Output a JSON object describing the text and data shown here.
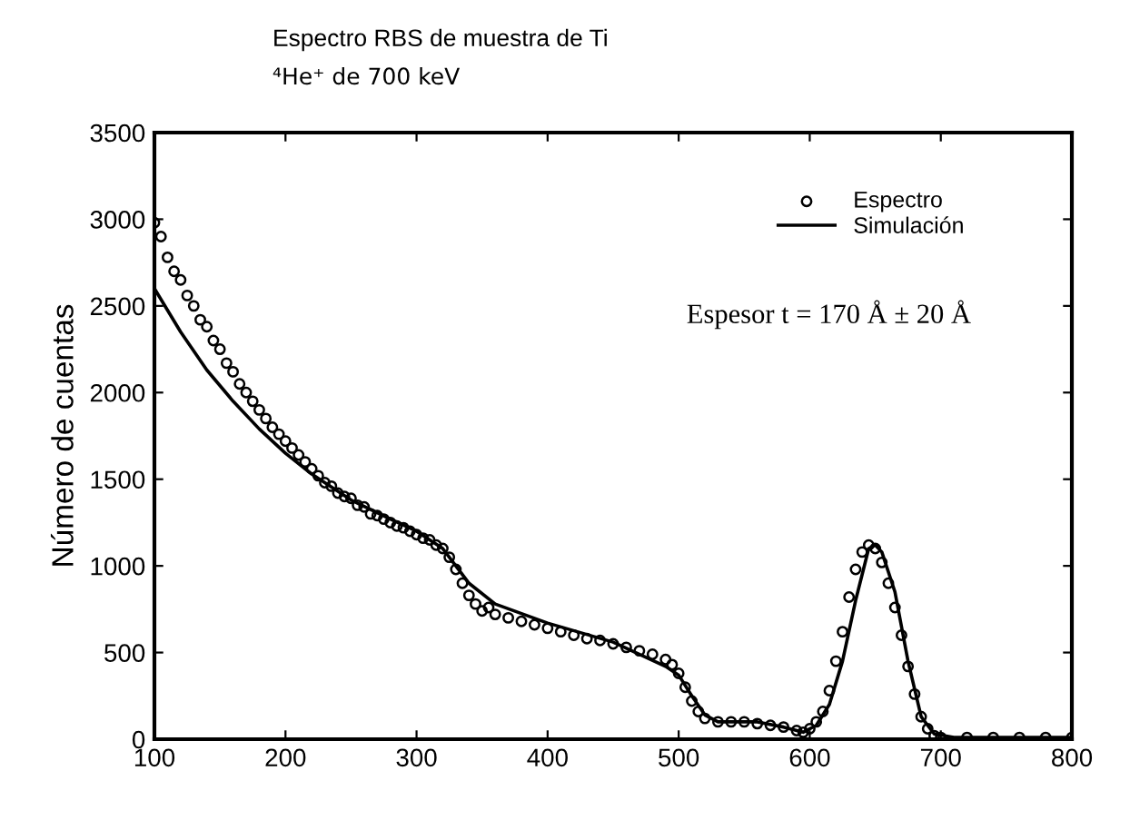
{
  "chart_data": {
    "type": "scatter",
    "title": "Espectro RBS de muestra de Ti",
    "subtitle": "⁴He⁺ de 700 keV",
    "ylabel": "Número de cuentas",
    "annotations": [
      "Espesor t = 170 Å ± 20 Å"
    ],
    "xlim": [
      100,
      800
    ],
    "xticks": [
      100,
      200,
      300,
      400,
      500,
      600,
      700,
      800
    ],
    "ylim": [
      0,
      3500
    ],
    "yticks": [
      0,
      500,
      1000,
      1500,
      2000,
      2500,
      3000,
      3500
    ],
    "grid": false,
    "legend": "top right",
    "series": [
      {
        "name": "Espectro",
        "marker": "circle",
        "color": "#000000",
        "x": [
          100,
          105,
          110,
          115,
          120,
          125,
          130,
          135,
          140,
          145,
          150,
          155,
          160,
          165,
          170,
          175,
          180,
          185,
          190,
          195,
          200,
          205,
          210,
          215,
          220,
          225,
          230,
          235,
          240,
          245,
          250,
          255,
          260,
          265,
          270,
          275,
          280,
          285,
          290,
          295,
          300,
          305,
          310,
          315,
          320,
          325,
          330,
          335,
          340,
          345,
          350,
          355,
          360,
          370,
          380,
          390,
          400,
          410,
          420,
          430,
          440,
          450,
          460,
          470,
          480,
          490,
          495,
          500,
          505,
          510,
          515,
          520,
          530,
          540,
          550,
          560,
          570,
          580,
          590,
          595,
          600,
          605,
          610,
          615,
          620,
          625,
          630,
          635,
          640,
          645,
          650,
          655,
          660,
          665,
          670,
          675,
          680,
          685,
          690,
          695,
          700,
          720,
          740,
          760,
          780,
          800
        ],
        "values": [
          2980,
          2900,
          2780,
          2700,
          2650,
          2560,
          2500,
          2420,
          2380,
          2300,
          2250,
          2170,
          2120,
          2050,
          2000,
          1950,
          1900,
          1850,
          1800,
          1760,
          1720,
          1680,
          1640,
          1600,
          1560,
          1520,
          1480,
          1460,
          1420,
          1400,
          1390,
          1350,
          1340,
          1300,
          1290,
          1270,
          1250,
          1230,
          1220,
          1200,
          1180,
          1160,
          1150,
          1120,
          1100,
          1050,
          980,
          900,
          830,
          780,
          740,
          760,
          720,
          700,
          680,
          660,
          640,
          620,
          600,
          580,
          570,
          550,
          530,
          510,
          490,
          460,
          430,
          380,
          300,
          220,
          160,
          120,
          100,
          100,
          100,
          90,
          80,
          70,
          50,
          40,
          60,
          100,
          160,
          280,
          450,
          620,
          820,
          980,
          1080,
          1120,
          1100,
          1020,
          900,
          760,
          600,
          420,
          260,
          130,
          60,
          20,
          10,
          10,
          10,
          10,
          10,
          10
        ]
      },
      {
        "name": "Simulación",
        "type": "line",
        "line_style": "solid",
        "marker": "none",
        "color": "#000000",
        "x": [
          100,
          120,
          140,
          160,
          180,
          200,
          220,
          250,
          280,
          300,
          320,
          340,
          360,
          400,
          450,
          490,
          500,
          510,
          520,
          530,
          560,
          580,
          595,
          605,
          615,
          625,
          635,
          645,
          650,
          655,
          665,
          675,
          685,
          695,
          710,
          800
        ],
        "values": [
          2600,
          2350,
          2130,
          1950,
          1790,
          1650,
          1530,
          1380,
          1270,
          1200,
          1100,
          900,
          780,
          670,
          560,
          420,
          370,
          250,
          140,
          100,
          100,
          70,
          40,
          80,
          200,
          450,
          800,
          1100,
          1120,
          1080,
          850,
          450,
          130,
          30,
          10,
          10
        ]
      }
    ]
  }
}
